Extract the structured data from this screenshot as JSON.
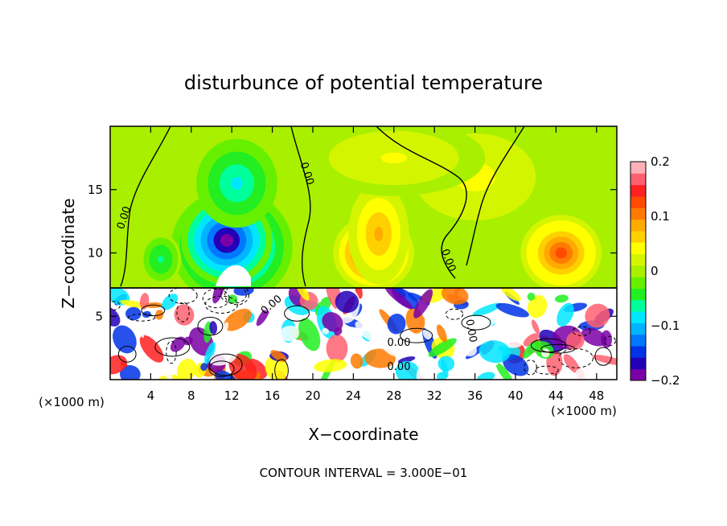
{
  "chart_data": {
    "type": "heatmap",
    "title": "disturbunce of potential temperature",
    "xlabel": "X−coordinate",
    "ylabel": "Z−coordinate",
    "x_unit_left": "(×1000 m)",
    "x_unit_right": "(×1000 m)",
    "footer": "CONTOUR INTERVAL = 3.000E−01",
    "xlim": [
      0,
      50
    ],
    "ylim": [
      0,
      20
    ],
    "xticks": [
      4,
      8,
      12,
      16,
      20,
      24,
      28,
      32,
      36,
      40,
      44,
      48
    ],
    "xtick_labels": [
      "4",
      "8",
      "12",
      "16",
      "20",
      "24",
      "28",
      "32",
      "36",
      "40",
      "44",
      "48"
    ],
    "yticks": [
      5,
      10,
      15
    ],
    "ytick_labels": [
      "5",
      "10",
      "15"
    ],
    "contour_labels": [
      "0.00",
      "0.00",
      "0.00",
      "0.00",
      "0.00",
      "0.00",
      "0.00"
    ],
    "colorbar": {
      "range": [
        -0.2,
        0.2
      ],
      "ticks": [
        0.2,
        0.1,
        0,
        -0.1,
        -0.2
      ],
      "tick_labels": [
        "0.2",
        "0.1",
        "0",
        "−0.1",
        "−0.2"
      ],
      "colors": [
        "#7a00a6",
        "#2200b8",
        "#0033e6",
        "#0077ff",
        "#00b4ff",
        "#00e6ff",
        "#00ff9a",
        "#22ee22",
        "#66f000",
        "#a8f000",
        "#d4f500",
        "#ffff00",
        "#ffd000",
        "#ffaa00",
        "#ff7a00",
        "#ff4a00",
        "#ff2020",
        "#ff6070",
        "#ffb0b8"
      ]
    },
    "blobs": [
      {
        "x": 12,
        "y": 10.5,
        "rx": 6,
        "ry": 4.5,
        "v": -0.14
      },
      {
        "x": 11.5,
        "y": 11,
        "rx": 4.5,
        "ry": 3.5,
        "v": -0.19
      },
      {
        "x": 12.5,
        "y": 15.5,
        "rx": 4,
        "ry": 3.5,
        "v": -0.08
      },
      {
        "x": 5,
        "y": 9.5,
        "rx": 2,
        "ry": 2,
        "v": -0.06
      },
      {
        "x": 26,
        "y": 10,
        "rx": 4,
        "ry": 3,
        "v": 0.14
      },
      {
        "x": 26.5,
        "y": 11.5,
        "rx": 3,
        "ry": 4,
        "v": 0.08
      },
      {
        "x": 44.5,
        "y": 10,
        "rx": 4,
        "ry": 3,
        "v": 0.12
      },
      {
        "x": 36,
        "y": 16,
        "rx": 7,
        "ry": 4,
        "v": 0.04
      },
      {
        "x": 28,
        "y": 17.5,
        "rx": 9,
        "ry": 3,
        "v": 0.035
      }
    ]
  }
}
